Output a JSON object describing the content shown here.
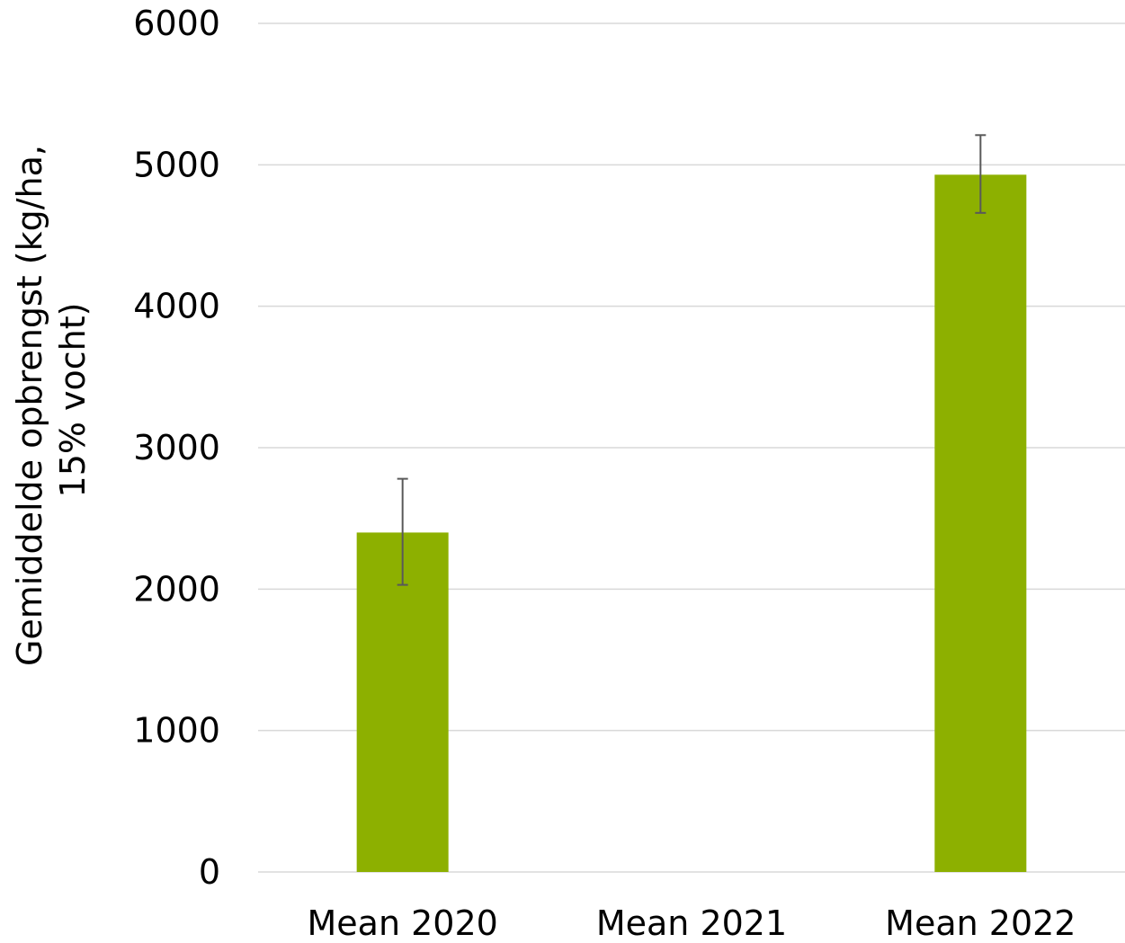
{
  "chart_data": {
    "type": "bar",
    "title": "",
    "xlabel": "",
    "ylabel_lines": [
      "Gemiddelde opbrengst (kg/ha,",
      "15% vocht)"
    ],
    "categories": [
      "Mean 2020",
      "Mean 2021",
      "Mean 2022"
    ],
    "series": [
      {
        "values": [
          2400,
          0,
          4930
        ],
        "error_low": [
          2030,
          null,
          4660
        ],
        "error_high": [
          2780,
          null,
          5210
        ],
        "color": "#8db000"
      }
    ],
    "ylim": [
      0,
      6000
    ],
    "yticks": [
      "0",
      "1000",
      "2000",
      "3000",
      "4000",
      "5000",
      "6000"
    ],
    "grid": true,
    "legend": "none"
  }
}
